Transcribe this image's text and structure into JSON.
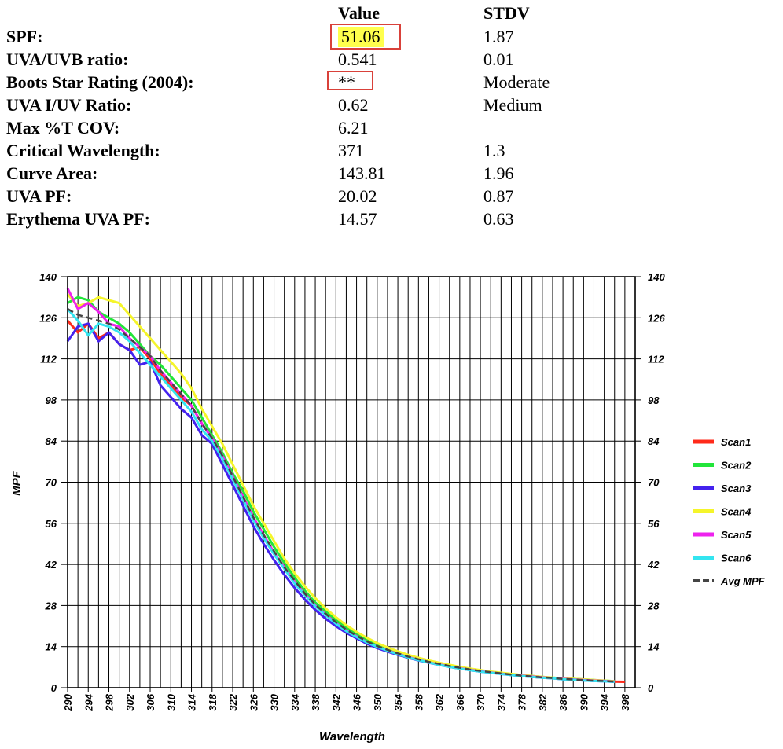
{
  "results": {
    "headers": {
      "value": "Value",
      "stdv": "STDV"
    },
    "rows": [
      {
        "label": "SPF:",
        "value": "51.06",
        "stdv": "1.87",
        "highlight": true
      },
      {
        "label": "UVA/UVB ratio:",
        "value": "0.541",
        "stdv": "0.01"
      },
      {
        "label": "Boots Star Rating (2004):",
        "value": "**",
        "stdv": "Moderate",
        "boxed": true
      },
      {
        "label": "UVA I/UV Ratio:",
        "value": "0.62",
        "stdv": "Medium"
      },
      {
        "label": "Max %T COV:",
        "value": "6.21",
        "stdv": ""
      },
      {
        "label": "Critical Wavelength:",
        "value": "371",
        "stdv": "1.3"
      },
      {
        "label": "Curve Area:",
        "value": "143.81",
        "stdv": "1.96"
      },
      {
        "label": "UVA PF:",
        "value": "20.02",
        "stdv": "0.87"
      },
      {
        "label": "Erythema UVA PF:",
        "value": "14.57",
        "stdv": "0.63"
      }
    ]
  },
  "chart_data": {
    "type": "line",
    "title": "",
    "xlabel": "Wavelength",
    "ylabel": "MPF",
    "xlim": [
      290,
      400
    ],
    "ylim": [
      0,
      140
    ],
    "x_ticks": [
      290,
      294,
      298,
      302,
      306,
      310,
      314,
      318,
      322,
      326,
      330,
      334,
      338,
      342,
      346,
      350,
      354,
      358,
      362,
      366,
      370,
      374,
      378,
      382,
      386,
      390,
      394,
      398
    ],
    "y_ticks": [
      0,
      14,
      28,
      42,
      56,
      70,
      84,
      98,
      112,
      126,
      140
    ],
    "grid": true,
    "legend_position": "right",
    "x": [
      290,
      292,
      294,
      296,
      298,
      300,
      302,
      304,
      306,
      308,
      310,
      312,
      314,
      316,
      318,
      320,
      322,
      324,
      326,
      328,
      330,
      332,
      334,
      336,
      338,
      340,
      342,
      344,
      346,
      348,
      350,
      352,
      354,
      356,
      358,
      360,
      362,
      364,
      366,
      368,
      370,
      372,
      374,
      376,
      378,
      380,
      382,
      384,
      386,
      388,
      390,
      392,
      394,
      396,
      398,
      400
    ],
    "series": [
      {
        "name": "Scan1",
        "color": "#ff2a1a",
        "dashed": false,
        "values": [
          125,
          121,
          124,
          119,
          121,
          117,
          115,
          116,
          112,
          107,
          103,
          99,
          96,
          90,
          85,
          79,
          72,
          65,
          58,
          52,
          46,
          41,
          36,
          32,
          28,
          25,
          22,
          19.5,
          17.5,
          15.5,
          14,
          12.7,
          11.5,
          10.4,
          9.5,
          8.6,
          7.9,
          7.2,
          6.6,
          6.1,
          5.6,
          5.2,
          4.8,
          4.4,
          4.1,
          3.8,
          3.5,
          3.3,
          3.0,
          2.8,
          2.6,
          2.4,
          2.3,
          2.1,
          2.0,
          null
        ]
      },
      {
        "name": "Scan2",
        "color": "#22e53a",
        "dashed": false,
        "values": [
          131,
          133,
          132,
          128,
          126,
          124,
          121,
          117,
          113,
          110,
          106,
          102,
          98,
          92,
          86,
          80,
          73,
          67,
          60,
          54,
          48,
          42.5,
          37.5,
          33,
          29,
          26,
          23,
          20.5,
          18.3,
          16.3,
          14.7,
          13.3,
          12,
          10.9,
          10,
          9.1,
          8.3,
          7.6,
          7,
          6.4,
          5.9,
          5.4,
          5,
          4.6,
          4.3,
          4,
          3.7,
          3.4,
          3.2,
          3.0,
          2.8,
          2.6,
          2.4,
          2.2,
          null,
          null
        ]
      },
      {
        "name": "Scan3",
        "color": "#4422ee",
        "dashed": false,
        "values": [
          118,
          123,
          124,
          118,
          121,
          117,
          115,
          110,
          111,
          103,
          99,
          95,
          92,
          86,
          83,
          76,
          69,
          62,
          55,
          49,
          43.5,
          38.5,
          34,
          30,
          26.5,
          23.5,
          21,
          18.7,
          16.8,
          15,
          13.5,
          12.3,
          11.2,
          10.2,
          9.3,
          8.5,
          7.8,
          7.1,
          6.5,
          6,
          5.5,
          5.1,
          4.7,
          4.3,
          4,
          3.7,
          3.4,
          3.2,
          2.9,
          2.7,
          2.5,
          2.3,
          2.2,
          2.0,
          null,
          null
        ]
      },
      {
        "name": "Scan4",
        "color": "#f5f52a",
        "dashed": false,
        "values": [
          134,
          130,
          131,
          133,
          132,
          131,
          127,
          123,
          119,
          115,
          111,
          107,
          102,
          95,
          89,
          83,
          76,
          69,
          62,
          56,
          50,
          44,
          39,
          34.5,
          30.5,
          27,
          24,
          21.3,
          19,
          17,
          15.2,
          13.7,
          12.4,
          11.2,
          10.2,
          9.3,
          8.5,
          7.8,
          7.1,
          6.5,
          6,
          5.5,
          5.1,
          4.7,
          4.3,
          4,
          3.7,
          3.4,
          3.2,
          3.0,
          2.8,
          2.6,
          2.4,
          2.2,
          null,
          null
        ]
      },
      {
        "name": "Scan5",
        "color": "#ee22ee",
        "dashed": false,
        "values": [
          136,
          129,
          131,
          128,
          124,
          123,
          119,
          116,
          113,
          108,
          104,
          100,
          96,
          90,
          85,
          79,
          72,
          65,
          58,
          52,
          46,
          41,
          36,
          32,
          28,
          25,
          22,
          19.5,
          17.5,
          15.5,
          14,
          12.7,
          11.5,
          10.4,
          9.5,
          8.6,
          7.9,
          7.2,
          6.6,
          6.1,
          5.6,
          5.2,
          4.8,
          4.4,
          4.1,
          3.8,
          3.5,
          3.3,
          3.0,
          2.8,
          2.6,
          2.4,
          2.3,
          2.1,
          null,
          null
        ]
      },
      {
        "name": "Scan6",
        "color": "#33e5f0",
        "dashed": false,
        "values": [
          129,
          125,
          120,
          124,
          123,
          121,
          118,
          114,
          110,
          106,
          102,
          98,
          94,
          88,
          84,
          78,
          71,
          64,
          57,
          51,
          45.5,
          40.5,
          35.5,
          31.5,
          27.7,
          24.7,
          21.8,
          19.3,
          17.3,
          15.4,
          13.9,
          12.6,
          11.4,
          10.3,
          9.4,
          8.6,
          7.8,
          7.1,
          6.5,
          6,
          5.5,
          5.1,
          4.7,
          4.3,
          4,
          3.7,
          3.4,
          3.2,
          2.9,
          2.7,
          2.5,
          2.3,
          2.2,
          2.0,
          null,
          null
        ]
      },
      {
        "name": "Avg MPF",
        "color": "#444444",
        "dashed": true,
        "values": [
          129,
          127,
          126,
          125,
          124,
          122,
          119,
          116,
          113,
          108,
          104,
          100,
          96,
          90,
          85,
          79,
          72,
          65,
          58,
          52,
          46.5,
          41,
          36.5,
          32,
          28.3,
          25.2,
          22.3,
          19.8,
          17.7,
          15.8,
          14.2,
          12.9,
          11.7,
          10.6,
          9.7,
          8.8,
          8.1,
          7.4,
          6.8,
          6.2,
          5.7,
          5.3,
          4.9,
          4.5,
          4.1,
          3.8,
          3.5,
          3.3,
          3.0,
          2.8,
          2.6,
          2.4,
          2.3,
          2.1,
          null,
          null
        ]
      }
    ]
  }
}
